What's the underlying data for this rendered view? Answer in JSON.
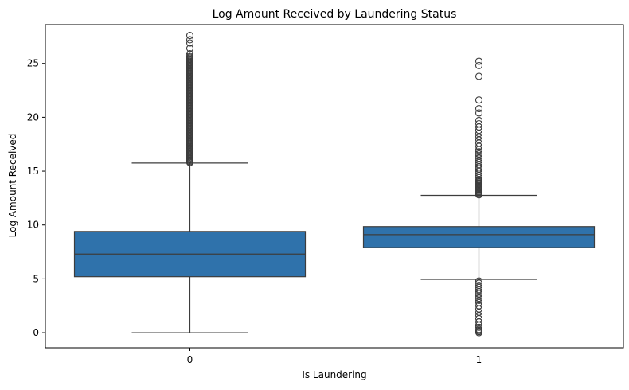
{
  "chart_data": {
    "type": "box",
    "title": "Log Amount Received by Laundering Status",
    "xlabel": "Is Laundering",
    "ylabel": "Log Amount Received",
    "categories": [
      "0",
      "1"
    ],
    "ylim": [
      -1.4,
      28.6
    ],
    "yticks": [
      0,
      5,
      10,
      15,
      20,
      25
    ],
    "ytick_labels": [
      "0",
      "5",
      "10",
      "15",
      "20",
      "25"
    ],
    "grid": false,
    "box_color": "#2f72ab",
    "edge_color": "#3d3d3d",
    "boxes": [
      {
        "category": "0",
        "whisker_low": 0.0,
        "q1": 5.2,
        "median": 7.3,
        "q3": 9.4,
        "whisker_high": 15.75,
        "outliers": [
          15.8,
          15.9,
          16.0,
          16.1,
          16.2,
          16.3,
          16.4,
          16.5,
          16.6,
          16.7,
          16.8,
          16.9,
          17.0,
          17.1,
          17.2,
          17.3,
          17.4,
          17.5,
          17.6,
          17.7,
          17.8,
          17.9,
          18.0,
          18.1,
          18.2,
          18.3,
          18.4,
          18.5,
          18.6,
          18.7,
          18.8,
          18.9,
          19.0,
          19.1,
          19.2,
          19.3,
          19.4,
          19.5,
          19.6,
          19.7,
          19.8,
          19.9,
          20.0,
          20.1,
          20.2,
          20.3,
          20.4,
          20.5,
          20.6,
          20.7,
          20.8,
          20.9,
          21.0,
          21.1,
          21.2,
          21.3,
          21.4,
          21.5,
          21.6,
          21.7,
          21.8,
          21.9,
          22.0,
          22.1,
          22.2,
          22.3,
          22.4,
          22.5,
          22.6,
          22.7,
          22.8,
          22.9,
          23.0,
          23.1,
          23.2,
          23.3,
          23.4,
          23.5,
          23.6,
          23.7,
          23.8,
          23.9,
          24.0,
          24.1,
          24.2,
          24.3,
          24.4,
          24.5,
          24.6,
          24.7,
          24.8,
          24.9,
          25.0,
          25.1,
          25.2,
          25.3,
          25.4,
          25.5,
          25.6,
          25.7,
          25.9,
          26.4,
          26.9,
          27.2,
          27.6
        ]
      },
      {
        "category": "1",
        "whisker_low": 4.95,
        "q1": 7.9,
        "median": 9.1,
        "q3": 9.85,
        "whisker_high": 12.75,
        "outliers": [
          0.0,
          0.1,
          0.2,
          0.3,
          0.5,
          0.7,
          1.0,
          1.3,
          1.6,
          1.9,
          2.2,
          2.5,
          2.8,
          3.0,
          3.2,
          3.4,
          3.6,
          3.8,
          4.0,
          4.2,
          4.4,
          4.6,
          4.8,
          12.8,
          12.9,
          13.0,
          13.1,
          13.2,
          13.3,
          13.4,
          13.5,
          13.6,
          13.7,
          13.8,
          13.9,
          14.0,
          14.1,
          14.2,
          14.4,
          14.6,
          14.8,
          15.0,
          15.2,
          15.4,
          15.6,
          15.8,
          16.0,
          16.2,
          16.4,
          16.6,
          16.8,
          17.0,
          17.3,
          17.6,
          17.9,
          18.2,
          18.5,
          18.8,
          19.1,
          19.4,
          19.7,
          20.4,
          20.8,
          21.6,
          23.8,
          24.8,
          25.2
        ]
      }
    ]
  }
}
